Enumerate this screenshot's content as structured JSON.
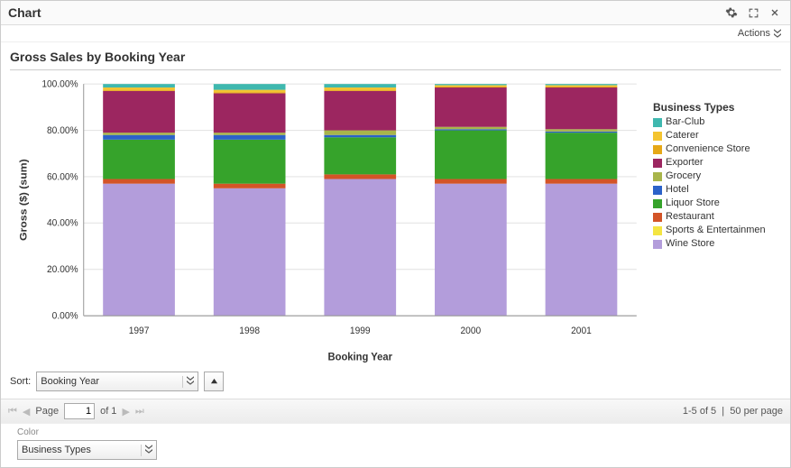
{
  "header": {
    "title": "Chart"
  },
  "actions": {
    "label": "Actions"
  },
  "chart": {
    "title": "Gross Sales by Booking Year",
    "type": "stacked-bar-100pct",
    "x_label": "Booking Year",
    "y_label": "Gross ($) (sum)",
    "categories": [
      "1997",
      "1998",
      "1999",
      "2000",
      "2001"
    ],
    "y_ticks": [
      "0.00%",
      "20.00%",
      "40.00%",
      "60.00%",
      "80.00%",
      "100.00%"
    ],
    "ylim": [
      0,
      100
    ],
    "series": [
      {
        "name": "Wine Store",
        "color": "#b39ddb",
        "values": [
          57,
          55,
          59,
          57,
          57
        ]
      },
      {
        "name": "Restaurant",
        "color": "#d35427",
        "values": [
          2,
          2,
          2,
          2,
          2
        ]
      },
      {
        "name": "Liquor Store",
        "color": "#36a32b",
        "values": [
          17,
          19,
          16,
          21,
          20
        ]
      },
      {
        "name": "Hotel",
        "color": "#2b62c9",
        "values": [
          2,
          2,
          1,
          0.5,
          0.5
        ]
      },
      {
        "name": "Grocery",
        "color": "#a8b54a",
        "values": [
          1,
          1,
          2,
          1,
          1
        ]
      },
      {
        "name": "Exporter",
        "color": "#9c2660",
        "values": [
          18,
          17,
          17,
          17,
          18
        ]
      },
      {
        "name": "Convenience Store",
        "color": "#e6a817",
        "values": [
          0.5,
          0.5,
          0.5,
          0.5,
          0.5
        ]
      },
      {
        "name": "Caterer",
        "color": "#f4c430",
        "values": [
          1,
          1,
          1,
          0.5,
          0.5
        ]
      },
      {
        "name": "Bar-Club",
        "color": "#3fb8af",
        "values": [
          1.5,
          2.5,
          1.5,
          0.5,
          0.5
        ]
      },
      {
        "name": "Sports & Entertainmen",
        "color": "#f4e542",
        "values": [
          0,
          0,
          0,
          0,
          0
        ]
      }
    ],
    "legend_title": "Business Types",
    "legend_order": [
      "Bar-Club",
      "Caterer",
      "Convenience Store",
      "Exporter",
      "Grocery",
      "Hotel",
      "Liquor Store",
      "Restaurant",
      "Sports & Entertainmen",
      "Wine Store"
    ],
    "background_color": "#ffffff",
    "grid_color": "#e5e5e5",
    "axis_color": "#999999",
    "bar_width": 0.65,
    "label_fontsize": 11,
    "tick_fontsize": 10,
    "title_fontsize": 14
  },
  "sort": {
    "label": "Sort:",
    "value": "Booking Year",
    "direction": "asc"
  },
  "pager": {
    "page_label": "Page",
    "page": "1",
    "of_label": "of 1",
    "range": "1-5 of 5",
    "per_page": "50 per page"
  },
  "color_section": {
    "label": "Color",
    "value": "Business Types"
  }
}
